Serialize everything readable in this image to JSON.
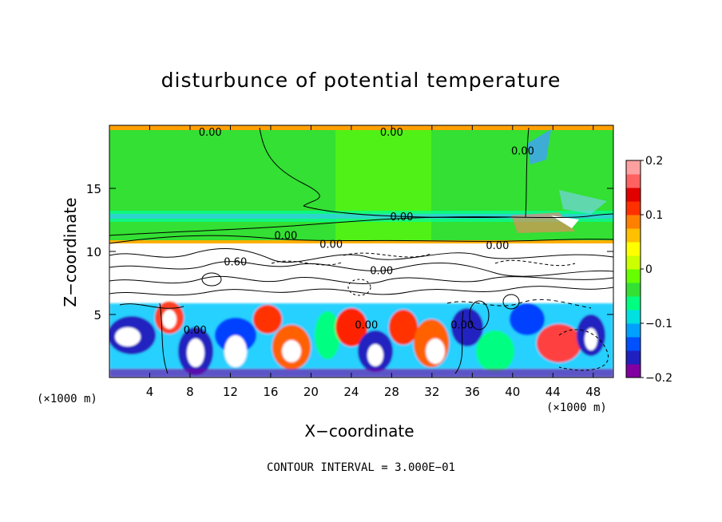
{
  "chart_data": {
    "type": "heatmap",
    "title": "disturbunce of potential temperature",
    "xlabel": "X−coordinate",
    "ylabel": "Z−coordinate",
    "x_unit": "(×1000 m)",
    "x_unit_secondary": "(×1000 m)",
    "xlim": [
      0,
      50
    ],
    "ylim": [
      0,
      20
    ],
    "x_ticks": [
      4,
      8,
      12,
      16,
      20,
      24,
      28,
      32,
      36,
      40,
      44,
      48
    ],
    "y_ticks": [
      5,
      10,
      15
    ],
    "colorbar": {
      "min": -0.2,
      "max": 0.2,
      "ticks": [
        0.2,
        0.1,
        0,
        -0.1,
        -0.2
      ],
      "tick_labels": [
        "0.2",
        "0.1",
        "0",
        "−0.1",
        "−0.2"
      ],
      "colors": [
        "#8000a0",
        "#2020c0",
        "#0050ff",
        "#00a0ff",
        "#00e0e0",
        "#00ff80",
        "#33e033",
        "#66ff00",
        "#ccff00",
        "#ffff00",
        "#ffc000",
        "#ff8000",
        "#ff3000",
        "#e00000",
        "#ff6060",
        "#ffa0a0"
      ]
    },
    "contour_labels": [
      {
        "text": "0.00",
        "x": 10,
        "z": 19.5
      },
      {
        "text": "0.00",
        "x": 28,
        "z": 19.5
      },
      {
        "text": "0.00",
        "x": 41,
        "z": 18
      },
      {
        "text": "0.00",
        "x": 29,
        "z": 12.8
      },
      {
        "text": "0.00",
        "x": 17.5,
        "z": 11.3
      },
      {
        "text": "0.00",
        "x": 22,
        "z": 10.6
      },
      {
        "text": "0.00",
        "x": 38.5,
        "z": 10.5
      },
      {
        "text": "0.00",
        "x": 27,
        "z": 8.5
      },
      {
        "text": "0.60",
        "x": 12.5,
        "z": 9.2
      },
      {
        "text": "0.00",
        "x": 8.5,
        "z": 3.8
      },
      {
        "text": "0.00",
        "x": 25.5,
        "z": 4.2
      },
      {
        "text": "0.00",
        "x": 35,
        "z": 4.2
      }
    ],
    "contour_interval_text": "CONTOUR INTERVAL = 3.000E−01"
  }
}
